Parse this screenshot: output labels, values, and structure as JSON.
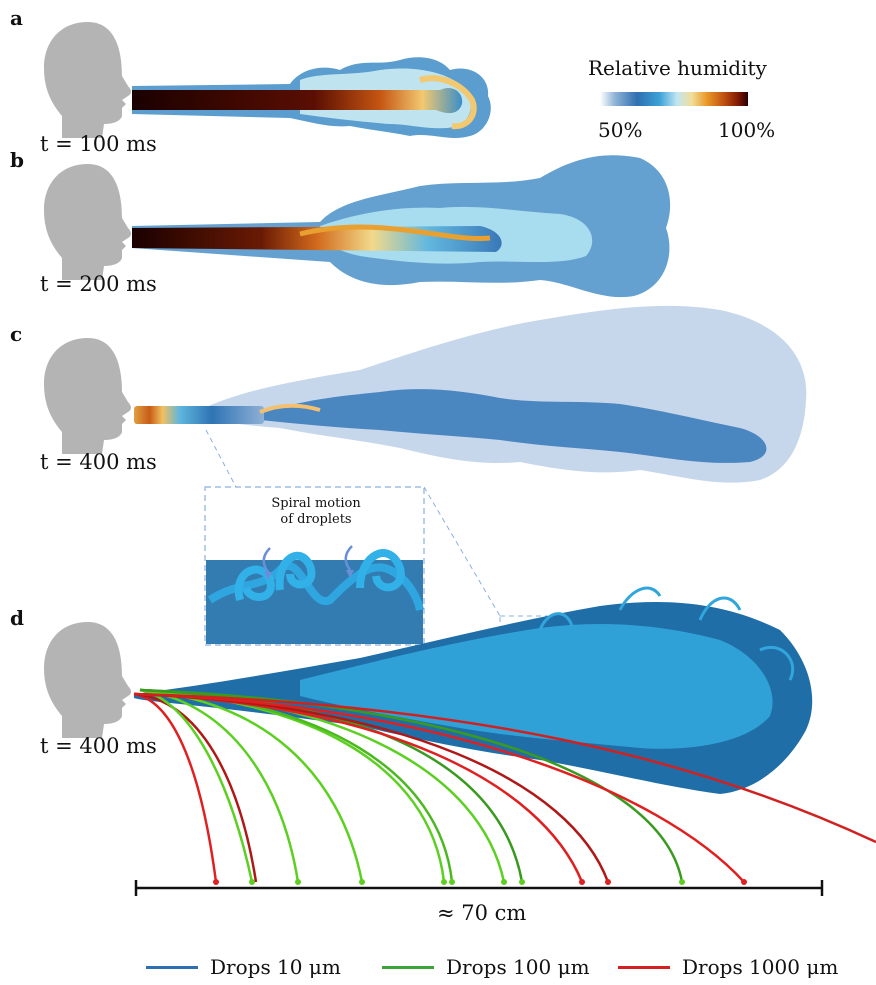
{
  "panels": [
    {
      "label": "a",
      "time": "t = 100 ms"
    },
    {
      "label": "b",
      "time": "t = 200 ms"
    },
    {
      "label": "c",
      "time": "t = 400 ms"
    },
    {
      "label": "d",
      "time": "t = 400 ms"
    }
  ],
  "colorbar": {
    "title": "Relative humidity",
    "min_label": "50%",
    "max_label": "100%"
  },
  "inset": {
    "line1": "Spiral motion",
    "line2": "of droplets"
  },
  "scale_bar": {
    "label": "≈ 70 cm"
  },
  "legend": [
    {
      "label": "Drops 10 μm",
      "color": "#2f6fb0"
    },
    {
      "label": "Drops 100 μm",
      "color": "#3aa33a"
    },
    {
      "label": "Drops 1000 μm",
      "color": "#d42020"
    }
  ]
}
